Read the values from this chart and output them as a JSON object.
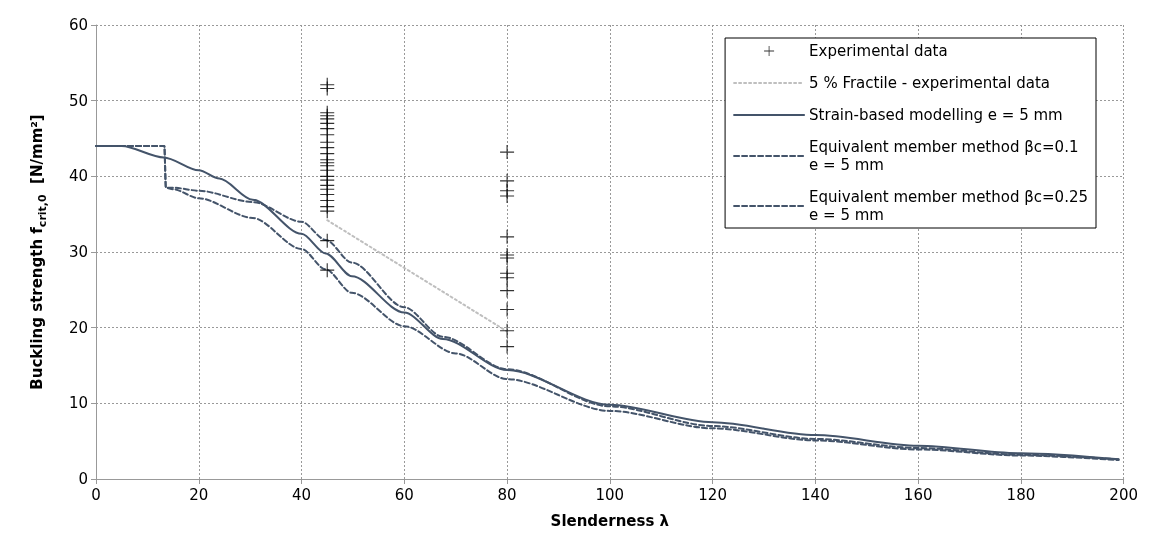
{
  "chart_data": {
    "type": "line",
    "xlabel": "Slenderness λ",
    "ylabel": "Buckling strength f$_{crit,0}$  [N/mm²]",
    "xlim": [
      0,
      200
    ],
    "xticks": [
      0,
      20,
      40,
      60,
      80,
      100,
      120,
      140,
      160,
      180,
      200
    ],
    "ylim": [
      0,
      60
    ],
    "yticks": [
      0,
      10,
      20,
      30,
      40,
      50,
      60
    ],
    "grid": true,
    "legend": "top right",
    "series": [
      {
        "name": "Experimental data",
        "type": "scatter",
        "marker": "cross",
        "color": "#000000",
        "x": [
          45,
          45,
          45,
          45,
          45,
          45,
          45,
          45,
          45,
          45,
          45,
          45,
          45,
          45,
          45,
          45,
          45,
          45,
          45,
          45,
          45,
          45,
          45,
          45,
          45,
          80,
          80,
          80,
          80,
          80,
          80,
          80,
          80,
          80,
          80,
          80,
          80,
          80
        ],
        "values": [
          52.1,
          51.6,
          48.4,
          48,
          47.6,
          47,
          46.3,
          45.5,
          44.5,
          43.8,
          43,
          42.2,
          41.8,
          41.4,
          40.8,
          40,
          39.5,
          38.8,
          38.3,
          37.6,
          36.8,
          36,
          35.4,
          31.5,
          27.6,
          43.2,
          39.4,
          38.1,
          37.4,
          32,
          29.6,
          29.2,
          27.2,
          26.6,
          24.9,
          22.4,
          19.6,
          17.5
        ]
      },
      {
        "name": "5 % Fractile - experimental data",
        "marker": "none",
        "line_style": "dotted",
        "color": "#bfbfbf",
        "x": [
          45,
          80
        ],
        "values": [
          34.2,
          19.5
        ]
      },
      {
        "name": "Strain-based modelling e = 5 mm",
        "marker": "none",
        "line_style": "solid",
        "color": "#44546a",
        "x": [
          0,
          5,
          13.2,
          20,
          24,
          30.5,
          40,
          44.7,
          49.8,
          60,
          67.5,
          80,
          100,
          120,
          140,
          160,
          180,
          199
        ],
        "values": [
          44,
          44,
          42.5,
          40.8,
          39.7,
          36.9,
          32.4,
          29.8,
          26.8,
          22,
          18.5,
          14.4,
          9.8,
          7.5,
          5.8,
          4.4,
          3.4,
          2.6
        ]
      },
      {
        "name": "Equivalent member method βc=0.1\ne = 5 mm",
        "marker": "none",
        "line_style": "dashed",
        "color": "#44546a",
        "x": [
          0,
          13.3,
          13.6,
          15,
          20,
          30.5,
          40,
          44.7,
          49.8,
          60,
          67.5,
          80,
          100,
          120,
          140,
          160,
          180,
          199
        ],
        "values": [
          44,
          44,
          38.5,
          38.5,
          38.1,
          36.6,
          34,
          31.6,
          28.6,
          22.7,
          18.8,
          14.5,
          9.6,
          7,
          5.3,
          4.1,
          3.2,
          2.6
        ]
      },
      {
        "name": "Equivalent member method βc=0.25\ne = 5 mm",
        "marker": "none",
        "line_style": "dashed",
        "color": "#44546a",
        "x": [
          0,
          13.3,
          13.6,
          15,
          20,
          30.5,
          40,
          44.7,
          49.8,
          60,
          70,
          80,
          100,
          120,
          140,
          160,
          180,
          199
        ],
        "values": [
          44,
          44,
          38.5,
          38.3,
          37.1,
          34.5,
          30.4,
          27.7,
          24.6,
          20.2,
          16.6,
          13.2,
          9,
          6.7,
          5.1,
          3.9,
          3.1,
          2.5
        ]
      }
    ]
  }
}
